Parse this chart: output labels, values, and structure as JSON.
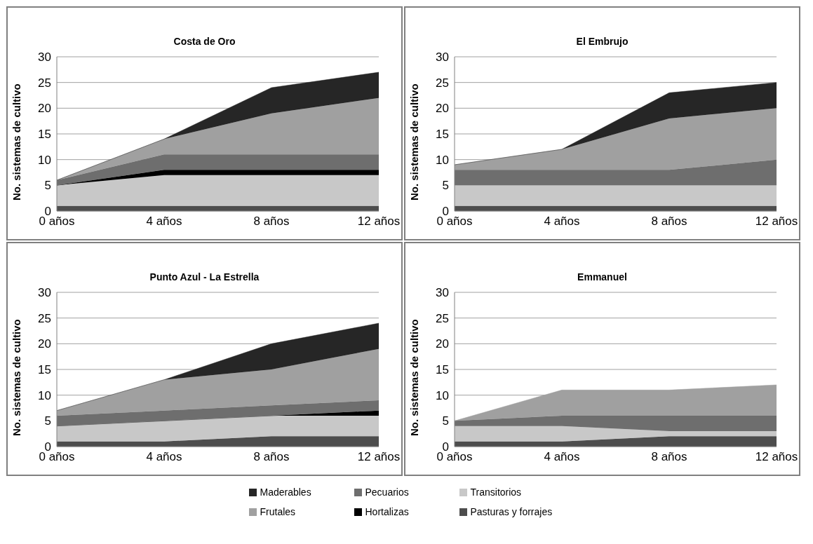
{
  "chart_data": [
    {
      "type": "area",
      "stacked": true,
      "title": "Costa de Oro",
      "ylabel": "No. sistemas de cultivo",
      "categories": [
        "0 años",
        "4 años",
        "8 años",
        "12 años"
      ],
      "ylim": [
        0,
        30
      ],
      "yticks": [
        0,
        5,
        10,
        15,
        20,
        25,
        30
      ],
      "grid": "y",
      "legend": "bottom",
      "series": [
        {
          "name": "Pasturas y forrajes",
          "color": "#4d4d4d",
          "values": [
            1,
            1,
            1,
            1
          ]
        },
        {
          "name": "Transitorios",
          "color": "#c8c8c8",
          "values": [
            4,
            6,
            6,
            6
          ]
        },
        {
          "name": "Hortalizas",
          "color": "#000000",
          "values": [
            0,
            1,
            1,
            1
          ]
        },
        {
          "name": "Pecuarios",
          "color": "#6e6e6e",
          "values": [
            1,
            3,
            3,
            3
          ]
        },
        {
          "name": "Frutales",
          "color": "#a0a0a0",
          "values": [
            0,
            3,
            8,
            11
          ]
        },
        {
          "name": "Maderables",
          "color": "#262626",
          "values": [
            0,
            0,
            5,
            5
          ]
        }
      ]
    },
    {
      "type": "area",
      "stacked": true,
      "title": "El Embrujo",
      "ylabel": "No. sistemas de cultivo",
      "categories": [
        "0 años",
        "4 años",
        "8 años",
        "12 años"
      ],
      "ylim": [
        0,
        30
      ],
      "yticks": [
        0,
        5,
        10,
        15,
        20,
        25,
        30
      ],
      "grid": "y",
      "series": [
        {
          "color": "#4d4d4d",
          "values": [
            1,
            1,
            1,
            1
          ]
        },
        {
          "color": "#c8c8c8",
          "values": [
            4,
            4,
            4,
            4
          ]
        },
        {
          "color": "#6e6e6e",
          "values": [
            3,
            3,
            3,
            5
          ]
        },
        {
          "color": "#a0a0a0",
          "values": [
            1,
            4,
            10,
            10
          ]
        },
        {
          "color": "#262626",
          "values": [
            0,
            0,
            5,
            5
          ]
        }
      ]
    },
    {
      "type": "area",
      "stacked": true,
      "title": "Punto Azul - La Estrella",
      "ylabel": "No. sistemas de cultivo",
      "categories": [
        "0 años",
        "4 años",
        "8 años",
        "12 años"
      ],
      "ylim": [
        0,
        30
      ],
      "yticks": [
        0,
        5,
        10,
        15,
        20,
        25,
        30
      ],
      "grid": "y",
      "series": [
        {
          "color": "#4d4d4d",
          "values": [
            1,
            1,
            2,
            2
          ]
        },
        {
          "color": "#c8c8c8",
          "values": [
            3,
            4,
            4,
            4
          ]
        },
        {
          "color": "#000000",
          "values": [
            0,
            0,
            0,
            1
          ]
        },
        {
          "color": "#6e6e6e",
          "values": [
            2,
            2,
            2,
            2
          ]
        },
        {
          "color": "#a0a0a0",
          "values": [
            1,
            6,
            7,
            10
          ]
        },
        {
          "color": "#262626",
          "values": [
            0,
            0,
            5,
            5
          ]
        }
      ]
    },
    {
      "type": "area",
      "stacked": true,
      "title": "Emmanuel",
      "ylabel": "No. sistemas de cultivo",
      "categories": [
        "0 años",
        "4 años",
        "8 años",
        "12 años"
      ],
      "ylim": [
        0,
        30
      ],
      "yticks": [
        0,
        5,
        10,
        15,
        20,
        25,
        30
      ],
      "grid": "y",
      "series": [
        {
          "color": "#4d4d4d",
          "values": [
            1,
            1,
            2,
            2
          ]
        },
        {
          "color": "#c8c8c8",
          "values": [
            3,
            3,
            1,
            1
          ]
        },
        {
          "color": "#6e6e6e",
          "values": [
            1,
            2,
            3,
            3
          ]
        },
        {
          "color": "#a0a0a0",
          "values": [
            0,
            5,
            5,
            6
          ]
        }
      ]
    }
  ]
}
